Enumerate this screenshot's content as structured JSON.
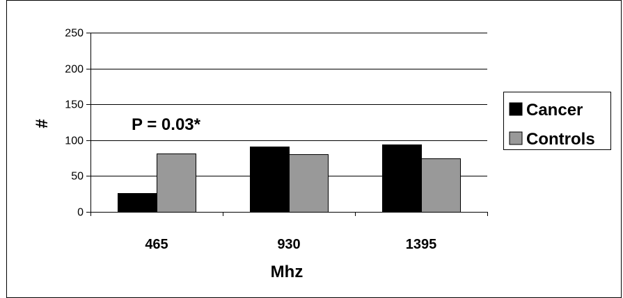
{
  "chart_data": {
    "type": "bar",
    "categories": [
      "465",
      "930",
      "1395"
    ],
    "series": [
      {
        "name": "Cancer",
        "values": [
          26,
          91,
          94
        ],
        "color": "#000000"
      },
      {
        "name": "Controls",
        "values": [
          81,
          80,
          75
        ],
        "color": "#999999"
      }
    ],
    "title": "",
    "xlabel": "Mhz",
    "ylabel": "#",
    "ylim": [
      0,
      250
    ],
    "yticks": [
      0,
      50,
      100,
      150,
      200,
      250
    ],
    "grid": true,
    "legend_position": "right",
    "annotation": "P = 0.03*"
  }
}
